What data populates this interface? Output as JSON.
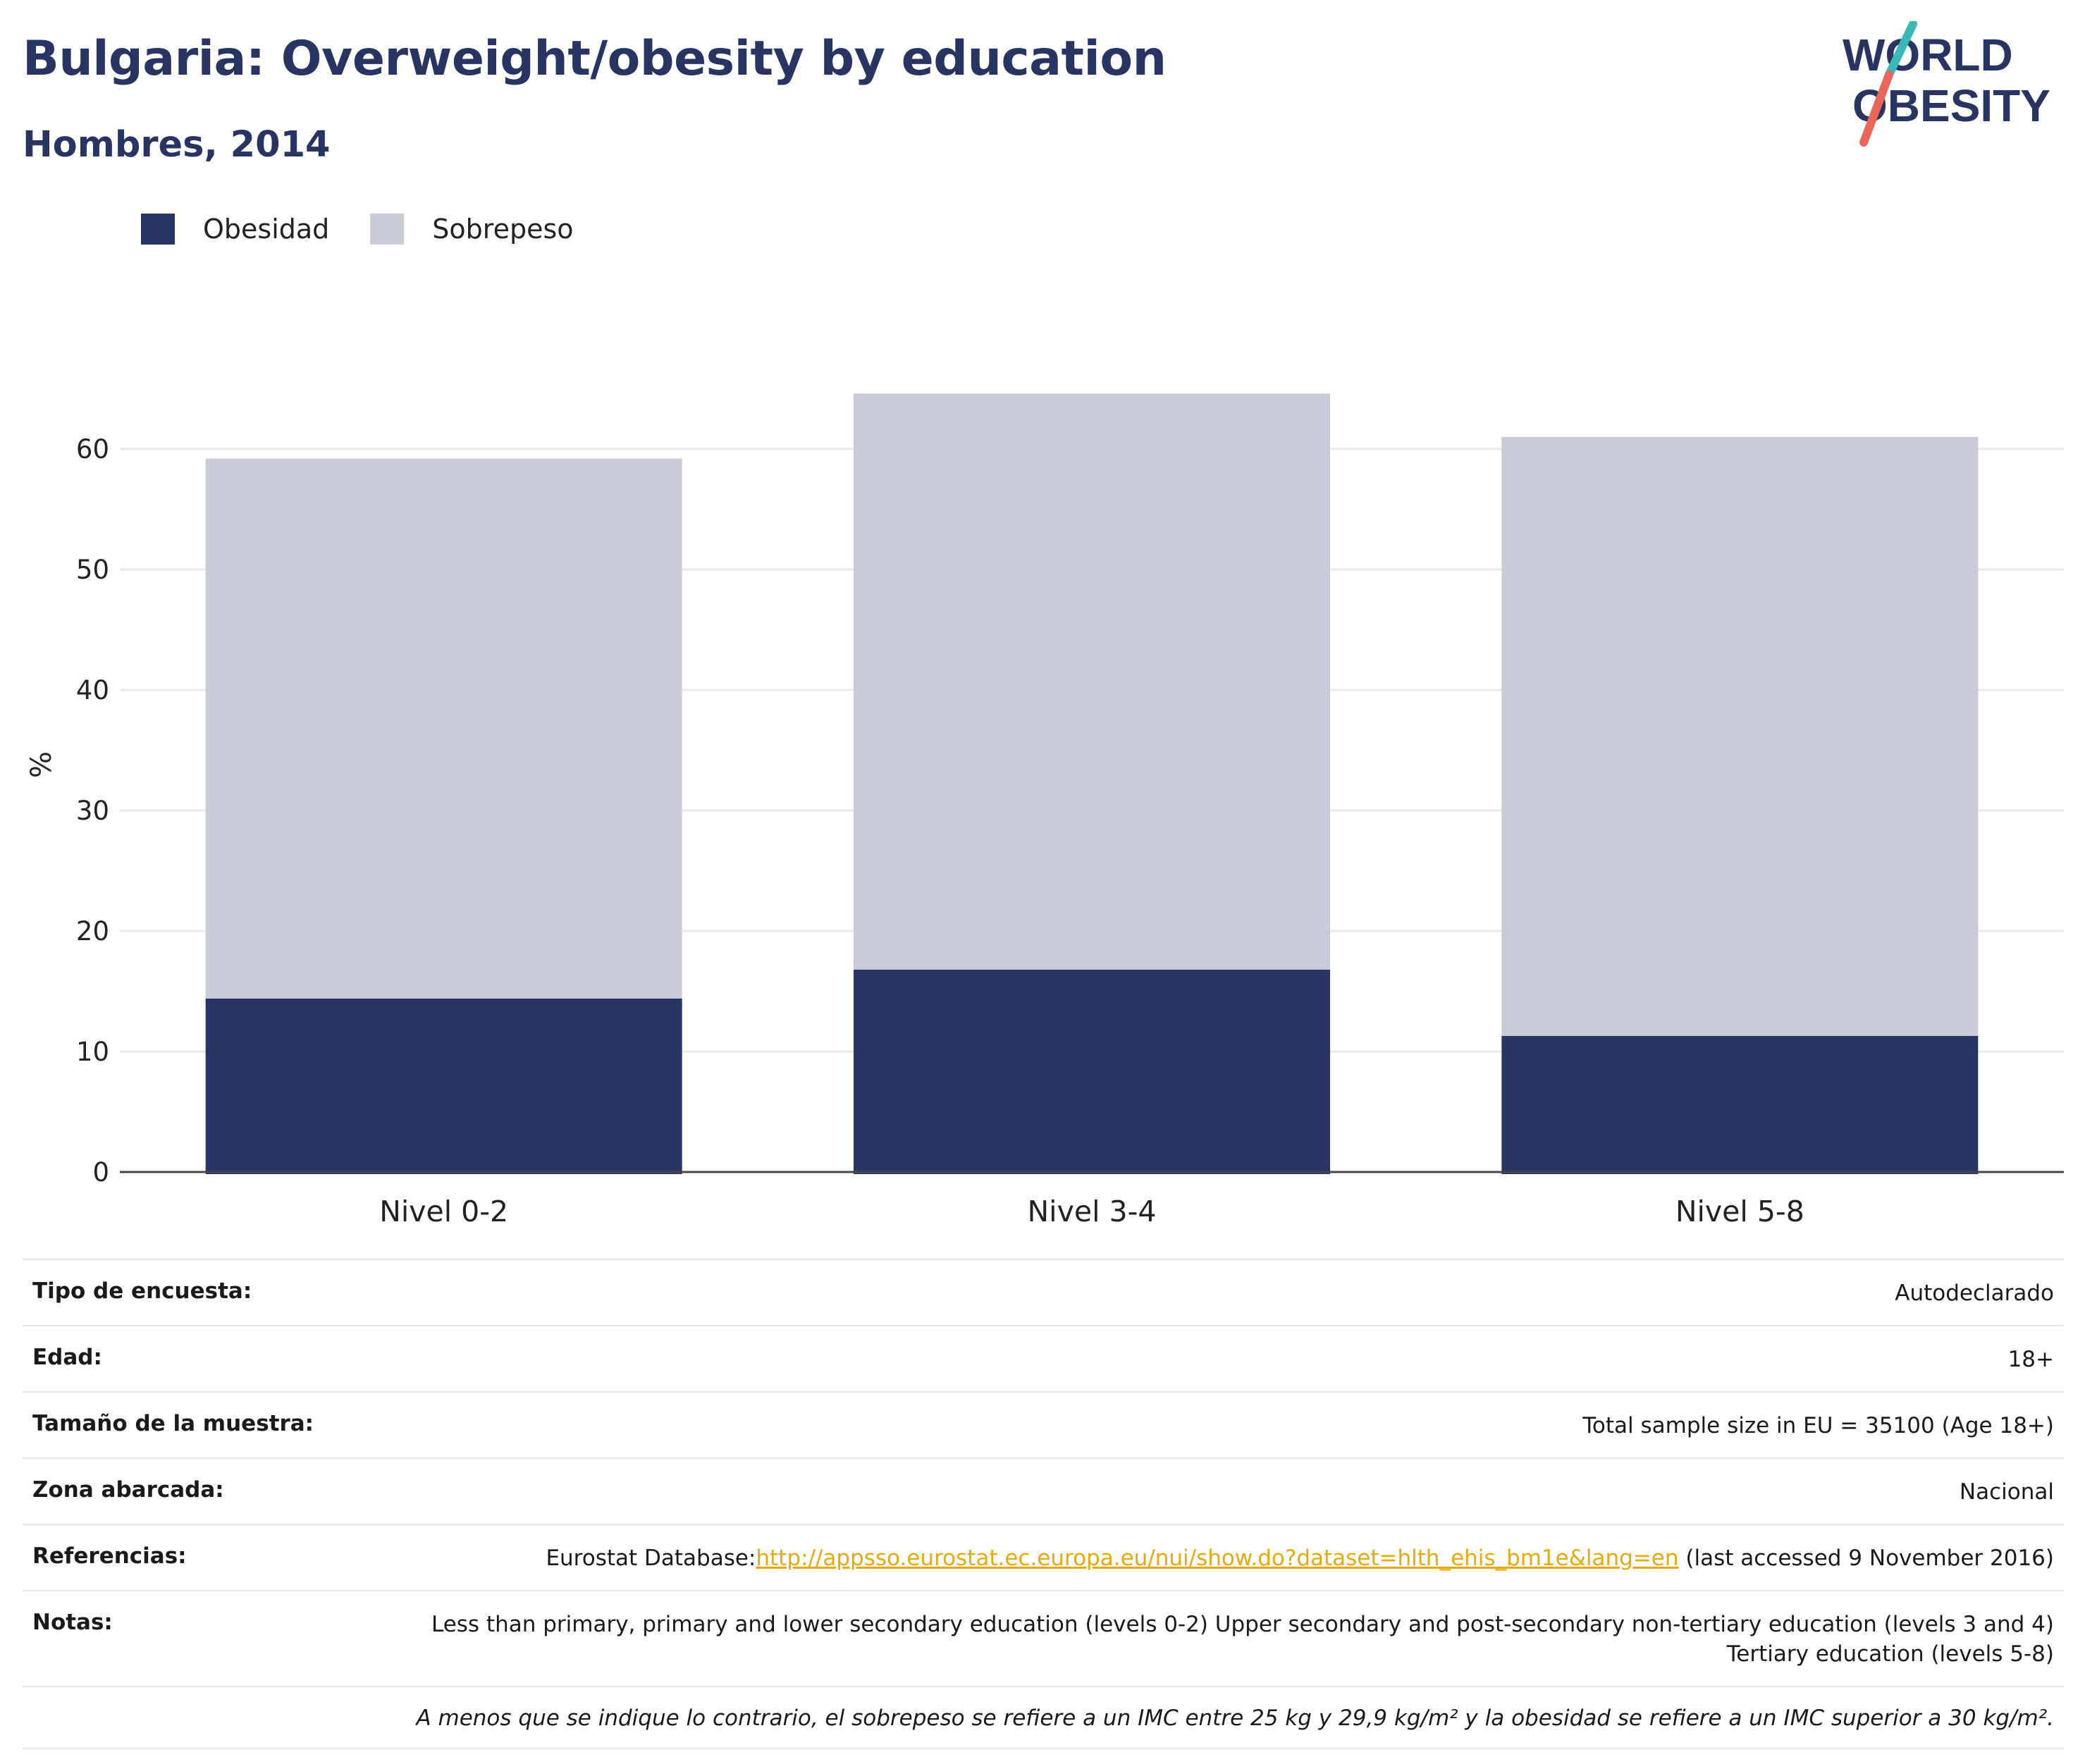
{
  "header": {
    "title": "Bulgaria: Overweight/obesity by education",
    "subtitle": "Hombres, 2014",
    "logo_line1": "WORLD",
    "logo_line2": "OBESITY"
  },
  "colors": {
    "obesity": "#293664",
    "overweight": "#c9ccd8",
    "title": "#283562",
    "link": "#e8a90c",
    "logo_teal": "#3bb8b8",
    "logo_coral": "#e8675a"
  },
  "chart_data": {
    "type": "bar",
    "stacked": true,
    "categories": [
      "Nivel 0-2",
      "Nivel 3-4",
      "Nivel 5-8"
    ],
    "series": [
      {
        "name": "Obesidad",
        "values": [
          14.4,
          16.8,
          11.3
        ]
      },
      {
        "name": "Sobrepeso",
        "values": [
          44.8,
          47.8,
          49.7
        ]
      }
    ],
    "xlabel": "",
    "ylabel": "%",
    "ylim": [
      0,
      65
    ],
    "yticks": [
      0,
      10,
      20,
      30,
      40,
      50,
      60
    ],
    "grid": true,
    "legend_position": "top-left"
  },
  "info": {
    "rows": [
      {
        "key": "Tipo de encuesta:",
        "value": "Autodeclarado"
      },
      {
        "key": "Edad:",
        "value": "18+"
      },
      {
        "key": "Tamaño de la muestra:",
        "value": "Total sample size in EU = 35100 (Age 18+)"
      },
      {
        "key": "Zona abarcada:",
        "value": "Nacional"
      }
    ],
    "references": {
      "key": "Referencias:",
      "prefix": "Eurostat Database:",
      "link": "http://appsso.eurostat.ec.europa.eu/nui/show.do?dataset=hlth_ehis_bm1e&lang=en",
      "suffix": " (last accessed 9 November 2016)"
    },
    "notes": {
      "key": "Notas:",
      "value": "Less than primary, primary and lower secondary education (levels 0-2) Upper secondary and post-secondary non-tertiary education (levels 3 and 4) Tertiary education (levels 5-8)"
    },
    "footnote": "A menos que se indique lo contrario, el sobrepeso se refiere a un IMC entre 25 kg y 29,9 kg/m² y la obesidad se refiere a un IMC superior a 30 kg/m²."
  }
}
